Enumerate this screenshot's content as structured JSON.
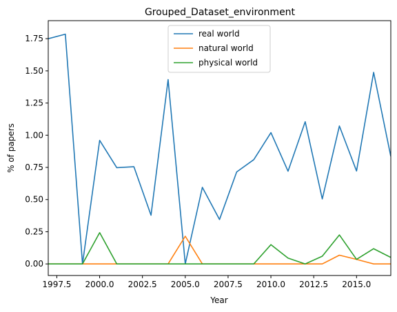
{
  "chart_data": {
    "type": "line",
    "title": "Grouped_Dataset_environment",
    "xlabel": "Year",
    "ylabel": "% of papers",
    "xlim": [
      1997,
      2017
    ],
    "ylim": [
      -0.09,
      1.89
    ],
    "x_ticks": [
      {
        "value": 1997.5,
        "label": "1997.5"
      },
      {
        "value": 2000.0,
        "label": "2000.0"
      },
      {
        "value": 2002.5,
        "label": "2002.5"
      },
      {
        "value": 2005.0,
        "label": "2005.0"
      },
      {
        "value": 2007.5,
        "label": "2007.5"
      },
      {
        "value": 2010.0,
        "label": "2010.0"
      },
      {
        "value": 2012.5,
        "label": "2012.5"
      },
      {
        "value": 2015.0,
        "label": "2015.0"
      }
    ],
    "y_ticks": [
      {
        "value": 0.0,
        "label": "0.00"
      },
      {
        "value": 0.25,
        "label": "0.25"
      },
      {
        "value": 0.5,
        "label": "0.50"
      },
      {
        "value": 0.75,
        "label": "0.75"
      },
      {
        "value": 1.0,
        "label": "1.00"
      },
      {
        "value": 1.25,
        "label": "1.25"
      },
      {
        "value": 1.5,
        "label": "1.50"
      },
      {
        "value": 1.75,
        "label": "1.75"
      }
    ],
    "grid": false,
    "legend_position": "top-center",
    "x": [
      1997,
      1998,
      1999,
      2000,
      2001,
      2002,
      2003,
      2004,
      2005,
      2006,
      2007,
      2008,
      2009,
      2010,
      2011,
      2012,
      2013,
      2014,
      2015,
      2016,
      2017
    ],
    "series": [
      {
        "name": "real world",
        "color": "#1f77b4",
        "values": [
          1.75,
          1.785,
          0.0,
          0.96,
          0.748,
          0.755,
          0.378,
          1.432,
          0.0,
          0.595,
          0.345,
          0.715,
          0.81,
          1.02,
          0.72,
          1.105,
          0.505,
          1.072,
          0.722,
          1.488,
          0.835
        ]
      },
      {
        "name": "natural world",
        "color": "#ff7f0e",
        "values": [
          0,
          0,
          0,
          0,
          0,
          0,
          0,
          0,
          0.215,
          0,
          0,
          0,
          0,
          0,
          0,
          0,
          0,
          0.068,
          0.035,
          0,
          0
        ]
      },
      {
        "name": "physical world",
        "color": "#2ca02c",
        "values": [
          0,
          0,
          0,
          0.243,
          0,
          0,
          0,
          0,
          0,
          0,
          0,
          0,
          0,
          0.15,
          0.045,
          0,
          0.06,
          0.225,
          0.035,
          0.118,
          0.05
        ]
      }
    ]
  }
}
